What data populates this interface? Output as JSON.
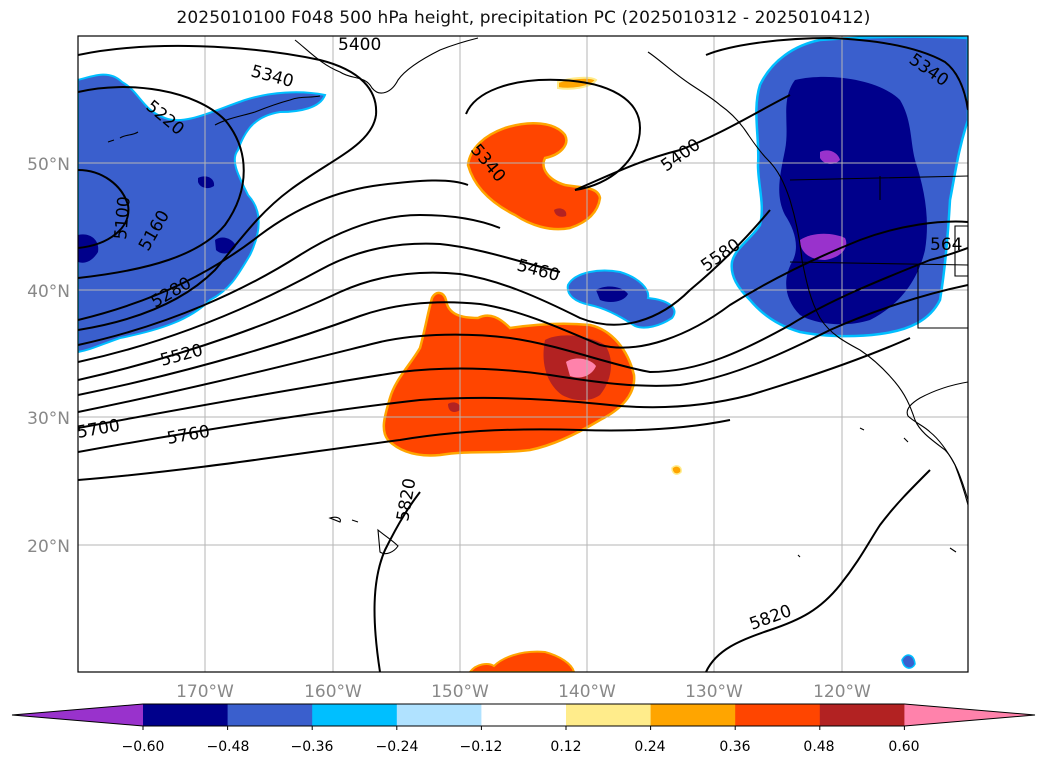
{
  "title": "2025010100 F048 500 hPa height, precipitation PC (2025010312 - 2025010412)",
  "lat_labels": [
    "50°N",
    "40°N",
    "30°N",
    "20°N"
  ],
  "lon_labels": [
    "170°W",
    "160°W",
    "150°W",
    "140°W",
    "130°W",
    "120°W"
  ],
  "contour_labels": [
    "5400",
    "5340",
    "5220",
    "5100",
    "5160",
    "5280",
    "5520",
    "5700",
    "5760",
    "5340",
    "5400",
    "5460",
    "5580",
    "5820",
    "5820",
    "5340",
    "564"
  ],
  "colorbar": {
    "colors": [
      "#9932cc",
      "#00008b",
      "#3a5fcd",
      "#00bfff",
      "#b0e2ff",
      "#ffffff",
      "#ffec8b",
      "#ffa500",
      "#ff4500",
      "#b22222",
      "#ff82ab"
    ],
    "tick_labels": [
      "−0.60",
      "−0.48",
      "−0.36",
      "−0.24",
      "−0.12",
      "0.12",
      "0.24",
      "0.36",
      "0.48",
      "0.60"
    ]
  }
}
